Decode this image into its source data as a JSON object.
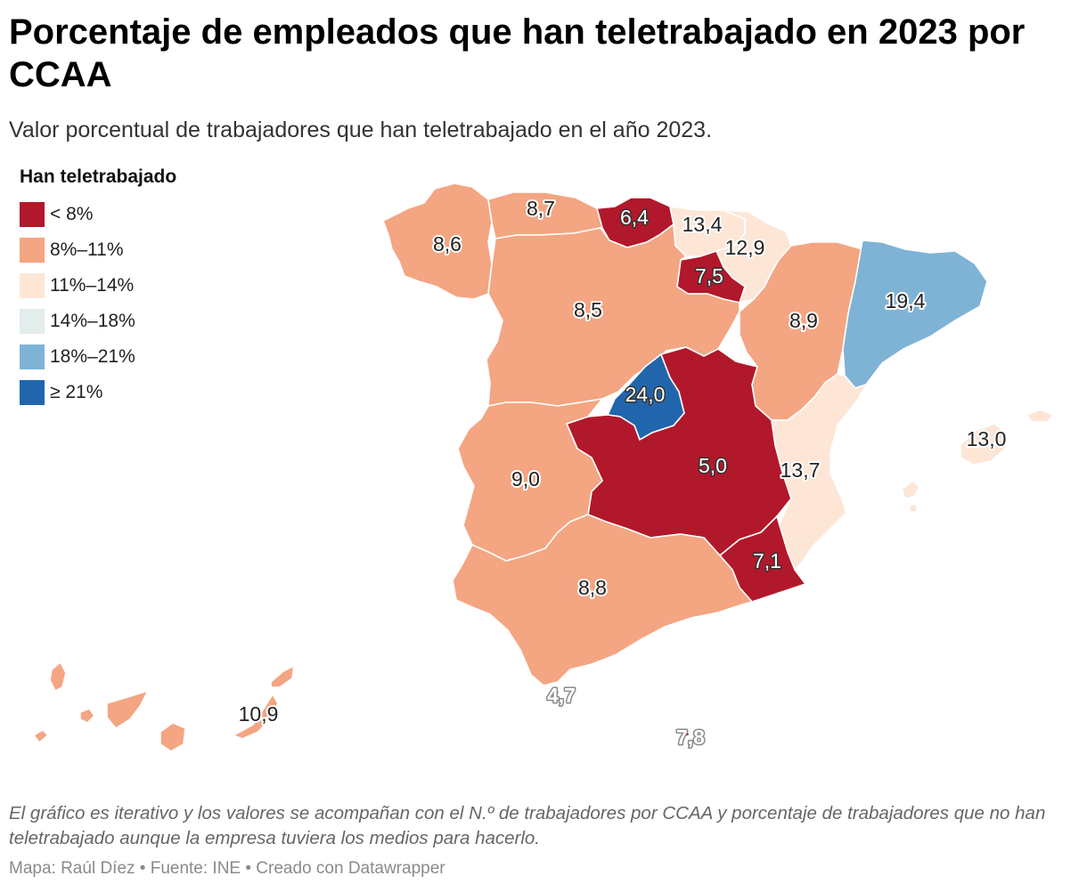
{
  "title": "Porcentaje de empleados que han teletrabajado en 2023 por CCAA",
  "subtitle": "Valor porcentual de trabajadores que han teletrabajado en el año 2023.",
  "legend": {
    "title": "Han teletrabajado",
    "items": [
      {
        "label": "< 8%",
        "color": "#b2182b"
      },
      {
        "label": "8%–11%",
        "color": "#f4a582"
      },
      {
        "label": "11%–14%",
        "color": "#fde6d6"
      },
      {
        "label": "14%–18%",
        "color": "#e2edec"
      },
      {
        "label": "18%–21%",
        "color": "#7fb3d6"
      },
      {
        "label": "≥ 21%",
        "color": "#2166ac"
      }
    ]
  },
  "regions": {
    "galicia": {
      "value": "8,6",
      "color": "#f4a582"
    },
    "asturias": {
      "value": "8,7",
      "color": "#f4a582"
    },
    "cantabria": {
      "value": "6,4",
      "color": "#b2182b"
    },
    "pais_vasco": {
      "value": "13,4",
      "color": "#fde6d6"
    },
    "navarra": {
      "value": "12,9",
      "color": "#fde6d6"
    },
    "la_rioja": {
      "value": "7,5",
      "color": "#b2182b"
    },
    "aragon": {
      "value": "8,9",
      "color": "#f4a582"
    },
    "cataluna": {
      "value": "19,4",
      "color": "#7fb3d6"
    },
    "castilla_leon": {
      "value": "8,5",
      "color": "#f4a582"
    },
    "madrid": {
      "value": "24,0",
      "color": "#2166ac"
    },
    "castilla_la_mancha": {
      "value": "5,0",
      "color": "#b2182b"
    },
    "valencia": {
      "value": "13,7",
      "color": "#fde6d6"
    },
    "baleares": {
      "value": "13,0",
      "color": "#fde6d6"
    },
    "extremadura": {
      "value": "9,0",
      "color": "#f4a582"
    },
    "murcia": {
      "value": "7,1",
      "color": "#b2182b"
    },
    "andalucia": {
      "value": "8,8",
      "color": "#f4a582"
    },
    "canarias": {
      "value": "10,9",
      "color": "#f4a582"
    },
    "ceuta": {
      "value": "4,7",
      "color": "#b2182b"
    },
    "melilla": {
      "value": "7,8",
      "color": "#b2182b"
    }
  },
  "footnote": "El gráfico es iterativo y los valores se acompañan con el N.º de trabajadores por CCAA y porcentaje de trabajadores que no han teletrabajado aunque la empresa tuviera los medios para hacerlo.",
  "credits": "Mapa: Raúl Díez • Fuente: INE • Creado con Datawrapper"
}
